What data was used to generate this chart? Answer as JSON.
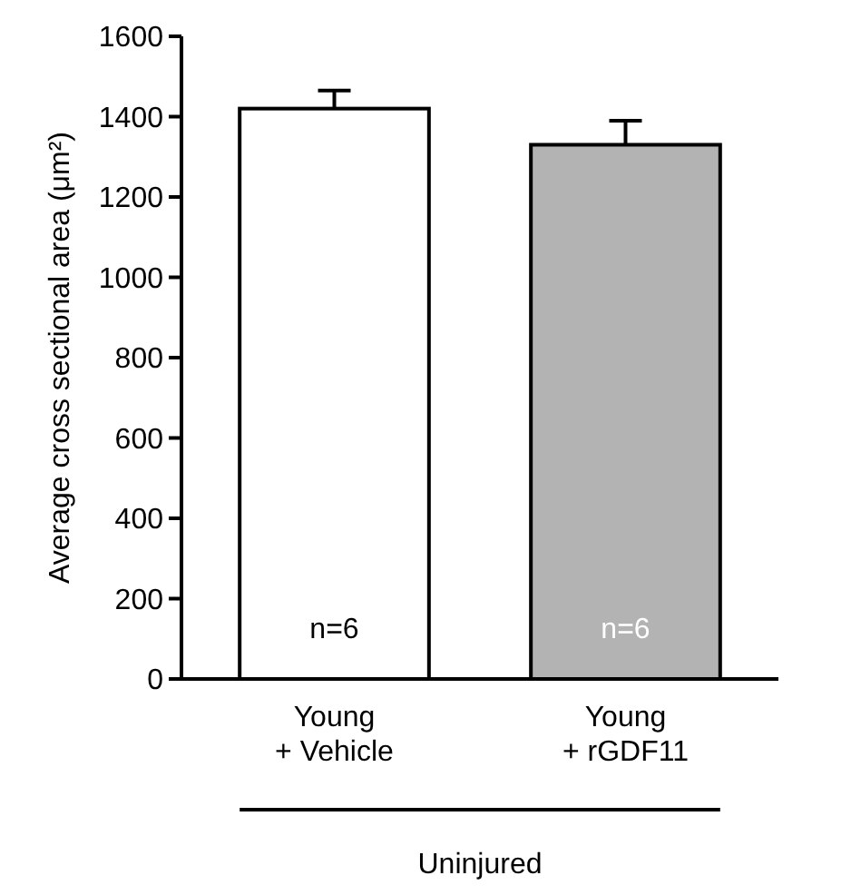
{
  "chart_data": {
    "type": "bar",
    "ylabel": "Average cross sectional area (μm²)",
    "categories": [
      "Young\n+ Vehicle",
      "Young\n+ rGDF11"
    ],
    "values": [
      1420,
      1330
    ],
    "colors": [
      "#ffffff",
      "#b3b3b3"
    ],
    "errors": [
      45,
      60
    ],
    "ylim": [
      0,
      1600
    ],
    "yticks": [
      0,
      200,
      400,
      600,
      800,
      1000,
      1200,
      1400,
      1600
    ],
    "grid": false,
    "annotations": [
      "n=6",
      "n=6",
      "Uninjured"
    ]
  }
}
